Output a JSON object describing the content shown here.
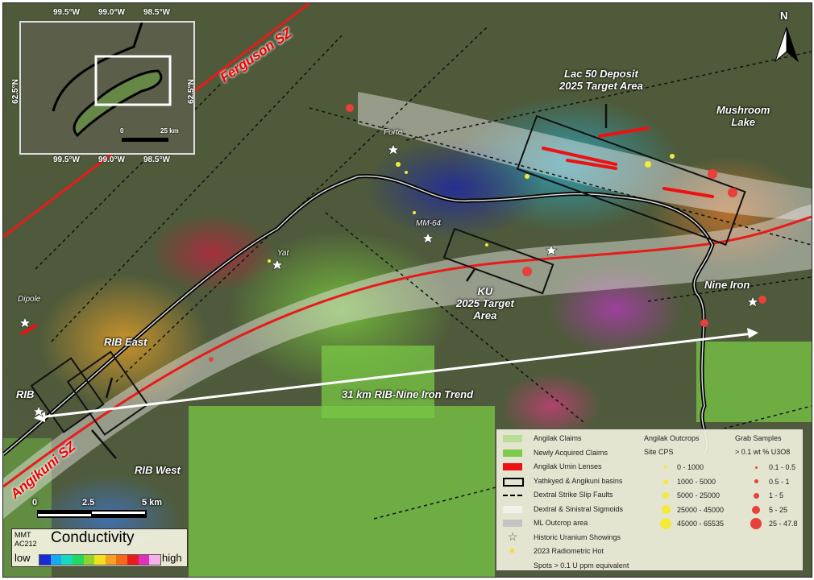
{
  "north_arrow": {
    "label": "N"
  },
  "inset": {
    "lon_labels": [
      "99.5°W",
      "99.0°W",
      "98.5°W"
    ],
    "lat_label": "62.5°N",
    "scale": {
      "start": "0",
      "end": "25 km"
    }
  },
  "labels": {
    "ferguson": "Ferguson SZ",
    "angikuni": "Angikuni SZ",
    "lac50": "Lac 50 Deposit\n2025 Target Area",
    "mushroom": "Mushroom\nLake",
    "ku": "KU\n2025 Target\nArea",
    "nine_iron": "Nine Iron",
    "rib_east": "RIB East",
    "rib": "RIB",
    "rib_west": "RIB West",
    "trend": "31 km RIB-Nine Iron Trend",
    "dipole": "Dipole",
    "yat": "Yat",
    "mm64": "MM-64",
    "forte": "Forte"
  },
  "scale_bar": {
    "ticks": [
      "0",
      "2.5",
      "5 km"
    ]
  },
  "conductivity": {
    "source_1": "MMT",
    "source_2": "AC212",
    "title": "Conductivity",
    "low": "low",
    "high": "high",
    "colors": [
      "#1a2bd6",
      "#18a8f0",
      "#19d8c0",
      "#22d860",
      "#8fd42a",
      "#f2e020",
      "#f4a020",
      "#f26a1a",
      "#e81c1c",
      "#e030c0",
      "#f6b0e8"
    ]
  },
  "legend": {
    "items": [
      {
        "label": "Angilak Claims",
        "color": "#b9dc97"
      },
      {
        "label": "Newly Acquired Claims",
        "color": "#7ccb4a"
      },
      {
        "label": "Angilak Umin Lenses",
        "color": "#ee1111"
      },
      {
        "label": "Yathkyed & Angikuni basins",
        "color": "#000000"
      },
      {
        "label": "Dextral Strike Slip Faults",
        "color": "#000000"
      },
      {
        "label": "Dextral & Sinistral Sigmoids",
        "color": "#f2f2ea"
      },
      {
        "label": "ML Outcrop area",
        "color": "#c4c4c4"
      },
      {
        "label": "Historic Uranium Showings",
        "color": "#ffffff"
      },
      {
        "label": "2023 Radiometric Hot",
        "color": "#f0e040"
      }
    ],
    "radiometric_note": "Spots > 0.1 U ppm equivalent",
    "outcrops_title": "Angilak Outcrops",
    "outcrops_sub": "Site CPS",
    "outcrops": [
      "0 - 1000",
      "1000 - 5000",
      "5000 - 25000",
      "25000 - 45000",
      "45000 - 65535"
    ],
    "grab_title": "Grab Samples",
    "grab_sub": "> 0.1 wt % U3O8",
    "grab": [
      "0.1 - 0.5",
      "0.5 - 1",
      "1 - 5",
      "5 - 25",
      "25 - 47.8"
    ],
    "outcrop_color": "#f3ea3a",
    "grab_color": "#e8403a"
  }
}
